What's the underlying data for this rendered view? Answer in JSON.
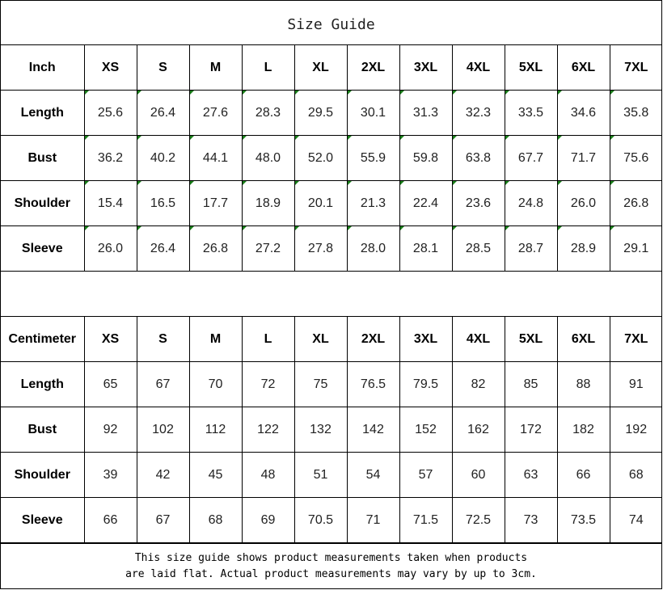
{
  "title": "Size Guide",
  "sizes": [
    "XS",
    "S",
    "M",
    "L",
    "XL",
    "2XL",
    "3XL",
    "4XL",
    "5XL",
    "6XL",
    "7XL"
  ],
  "inch": {
    "unit_label": "Inch",
    "rows": [
      {
        "label": "Length",
        "values": [
          "25.6",
          "26.4",
          "27.6",
          "28.3",
          "29.5",
          "30.1",
          "31.3",
          "32.3",
          "33.5",
          "34.6",
          "35.8"
        ]
      },
      {
        "label": "Bust",
        "values": [
          "36.2",
          "40.2",
          "44.1",
          "48.0",
          "52.0",
          "55.9",
          "59.8",
          "63.8",
          "67.7",
          "71.7",
          "75.6"
        ]
      },
      {
        "label": "Shoulder",
        "values": [
          "15.4",
          "16.5",
          "17.7",
          "18.9",
          "20.1",
          "21.3",
          "22.4",
          "23.6",
          "24.8",
          "26.0",
          "26.8"
        ]
      },
      {
        "label": "Sleeve",
        "values": [
          "26.0",
          "26.4",
          "26.8",
          "27.2",
          "27.8",
          "28.0",
          "28.1",
          "28.5",
          "28.7",
          "28.9",
          "29.1"
        ]
      }
    ]
  },
  "cm": {
    "unit_label": "Centimeter",
    "rows": [
      {
        "label": "Length",
        "values": [
          "65",
          "67",
          "70",
          "72",
          "75",
          "76.5",
          "79.5",
          "82",
          "85",
          "88",
          "91"
        ]
      },
      {
        "label": "Bust",
        "values": [
          "92",
          "102",
          "112",
          "122",
          "132",
          "142",
          "152",
          "162",
          "172",
          "182",
          "192"
        ]
      },
      {
        "label": "Shoulder",
        "values": [
          "39",
          "42",
          "45",
          "48",
          "51",
          "54",
          "57",
          "60",
          "63",
          "66",
          "68"
        ]
      },
      {
        "label": "Sleeve",
        "values": [
          "66",
          "67",
          "68",
          "69",
          "70.5",
          "71",
          "71.5",
          "72.5",
          "73",
          "73.5",
          "74"
        ]
      }
    ]
  },
  "note": {
    "line1": "This size guide shows product measurements taken when products",
    "line2": "are laid flat. Actual product measurements may vary by up to 3cm."
  },
  "colors": {
    "cell_marker": "#1a7f1a"
  }
}
